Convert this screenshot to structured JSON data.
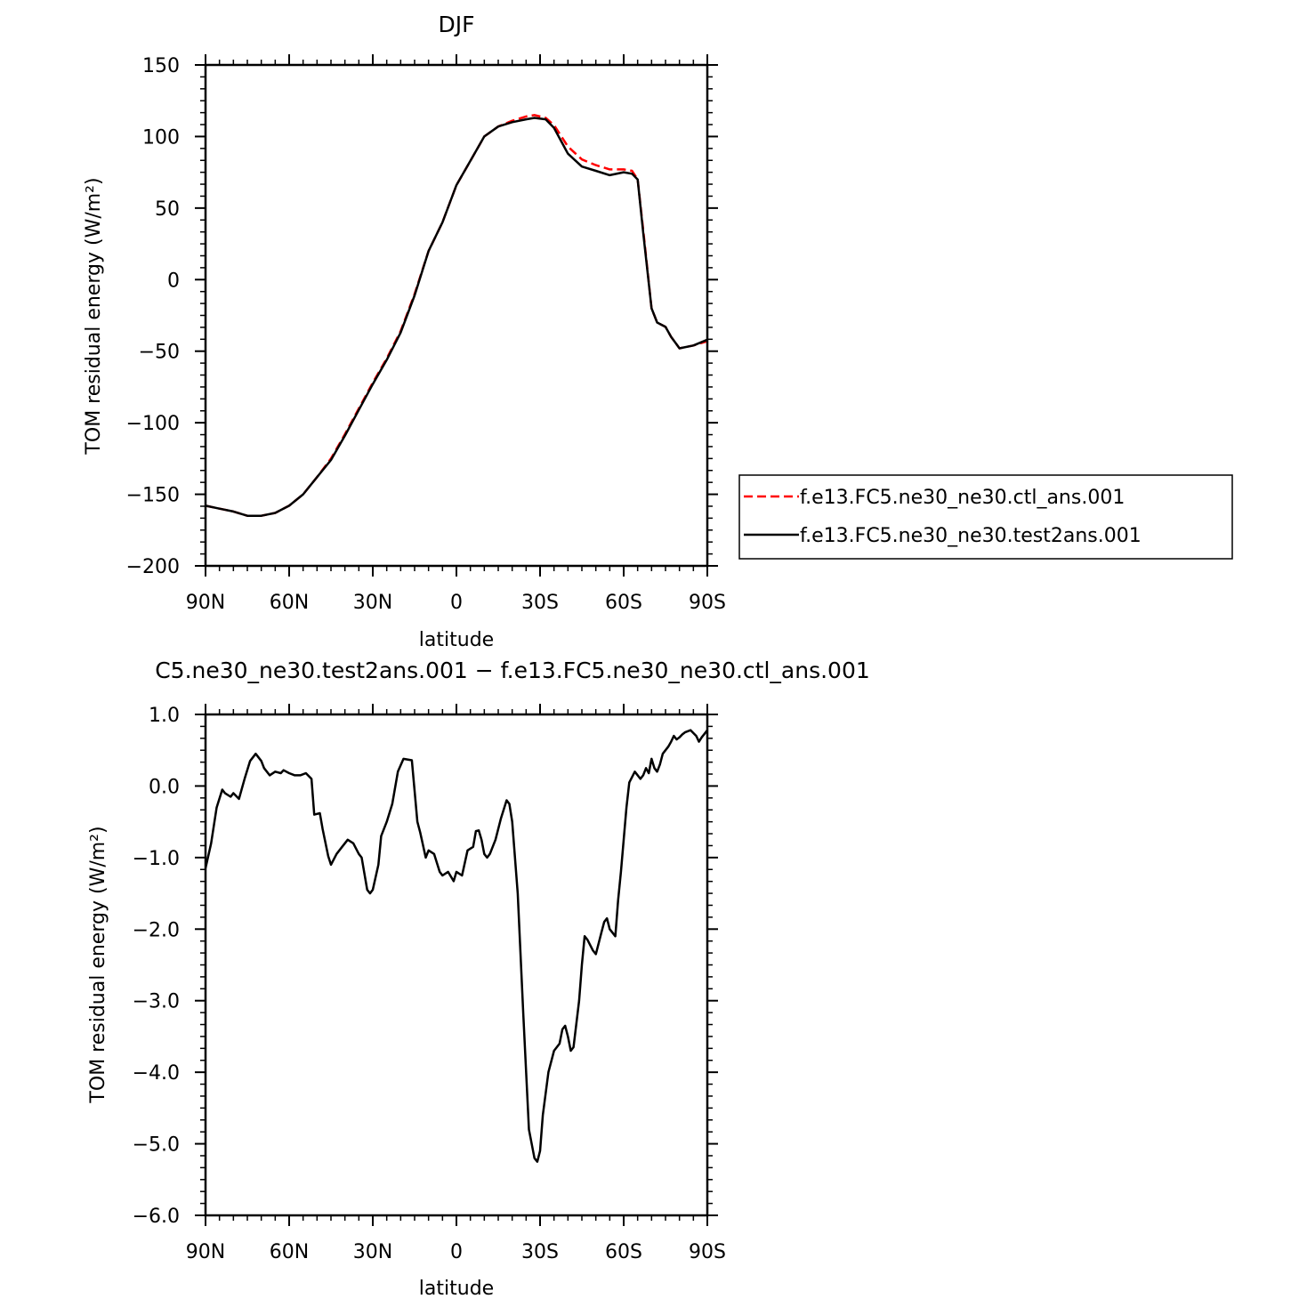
{
  "chart_data": [
    {
      "type": "line",
      "title": "DJF",
      "xlabel": "latitude",
      "ylabel": "TOM residual energy (W/m²)",
      "xlim": [
        90,
        -90
      ],
      "ylim": [
        -200,
        150
      ],
      "x_ticks": [
        {
          "value": 90,
          "label": "90N"
        },
        {
          "value": 60,
          "label": "60N"
        },
        {
          "value": 30,
          "label": "30N"
        },
        {
          "value": 0,
          "label": "0"
        },
        {
          "value": -30,
          "label": "30S"
        },
        {
          "value": -60,
          "label": "60S"
        },
        {
          "value": -90,
          "label": "90S"
        }
      ],
      "y_ticks": [
        {
          "value": 150,
          "label": "150"
        },
        {
          "value": 100,
          "label": "100"
        },
        {
          "value": 50,
          "label": "50"
        },
        {
          "value": 0,
          "label": "0"
        },
        {
          "value": -50,
          "label": "−50"
        },
        {
          "value": -100,
          "label": "−100"
        },
        {
          "value": -150,
          "label": "−150"
        },
        {
          "value": -200,
          "label": "−200"
        }
      ],
      "legend": "right",
      "series": [
        {
          "name": "f.e13.FC5.ne30_ne30.ctl_ans.001",
          "color": "#ff0000",
          "dash": "dashed",
          "x": [
            90,
            85,
            80,
            75,
            70,
            65,
            60,
            55,
            50,
            45,
            40,
            35,
            30,
            25,
            20,
            15,
            10,
            5,
            0,
            -5,
            -10,
            -15,
            -20,
            -25,
            -28,
            -32,
            -35,
            -40,
            -45,
            -50,
            -55,
            -60,
            -63,
            -65,
            -67,
            -70,
            -72,
            -75,
            -77,
            -80,
            -85,
            -90
          ],
          "y": [
            -158,
            -160,
            -162,
            -165,
            -165,
            -163,
            -158,
            -150,
            -138,
            -125,
            -108,
            -90,
            -72,
            -55,
            -36,
            -10,
            20,
            40,
            66,
            83,
            100,
            107,
            111,
            114,
            115,
            113,
            108,
            93,
            84,
            80,
            77,
            77,
            76,
            70,
            35,
            -20,
            -30,
            -33,
            -40,
            -48,
            -46,
            -43
          ]
        },
        {
          "name": "f.e13.FC5.ne30_ne30.test2ans.001",
          "color": "#000000",
          "dash": "solid",
          "x": [
            90,
            85,
            80,
            75,
            70,
            65,
            60,
            55,
            50,
            45,
            40,
            35,
            30,
            25,
            20,
            15,
            10,
            5,
            0,
            -5,
            -10,
            -15,
            -20,
            -25,
            -28,
            -32,
            -35,
            -40,
            -45,
            -50,
            -55,
            -60,
            -63,
            -65,
            -67,
            -70,
            -72,
            -75,
            -77,
            -80,
            -85,
            -90
          ],
          "y": [
            -158,
            -160,
            -162,
            -165,
            -165,
            -163,
            -158,
            -150,
            -138,
            -126,
            -109,
            -91,
            -73,
            -56,
            -37,
            -11,
            20,
            40,
            66,
            83,
            100,
            107,
            110,
            112,
            113,
            112,
            106,
            88,
            79,
            76,
            73,
            75,
            74,
            70,
            33,
            -20,
            -30,
            -33,
            -40,
            -48,
            -46,
            -42
          ]
        }
      ]
    },
    {
      "type": "line",
      "title": "C5.ne30_ne30.test2ans.001 − f.e13.FC5.ne30_ne30.ctl_ans.001",
      "xlabel": "latitude",
      "ylabel": "TOM residual energy (W/m²)",
      "xlim": [
        90,
        -90
      ],
      "ylim": [
        -6.0,
        1.0
      ],
      "x_ticks": [
        {
          "value": 90,
          "label": "90N"
        },
        {
          "value": 60,
          "label": "60N"
        },
        {
          "value": 30,
          "label": "30N"
        },
        {
          "value": 0,
          "label": "0"
        },
        {
          "value": -30,
          "label": "30S"
        },
        {
          "value": -60,
          "label": "60S"
        },
        {
          "value": -90,
          "label": "90S"
        }
      ],
      "y_ticks": [
        {
          "value": 1.0,
          "label": "1.0"
        },
        {
          "value": 0.0,
          "label": "0.0"
        },
        {
          "value": -1.0,
          "label": "−1.0"
        },
        {
          "value": -2.0,
          "label": "−2.0"
        },
        {
          "value": -3.0,
          "label": "−3.0"
        },
        {
          "value": -4.0,
          "label": "−4.0"
        },
        {
          "value": -5.0,
          "label": "−5.0"
        },
        {
          "value": -6.0,
          "label": "−6.0"
        }
      ],
      "series": [
        {
          "color": "#000000",
          "dash": "solid",
          "x": [
            90,
            88,
            86,
            84,
            83,
            81,
            80,
            78,
            76,
            74,
            72,
            70,
            69,
            67,
            65,
            63,
            62,
            60,
            58,
            56,
            54,
            52,
            51,
            49,
            48,
            46,
            45,
            43,
            41,
            39,
            37,
            35,
            34,
            32,
            31,
            30,
            28,
            27,
            25,
            23,
            21,
            19,
            16,
            14,
            13,
            11,
            10,
            8,
            6,
            5,
            3,
            1,
            0,
            -2,
            -4,
            -6,
            -7,
            -8,
            -9,
            -10,
            -11,
            -12,
            -14,
            -16,
            -18,
            -19,
            -20,
            -22,
            -24,
            -26,
            -28,
            -29,
            -30,
            -31,
            -33,
            -35,
            -37,
            -38,
            -39,
            -40,
            -41,
            -42,
            -44,
            -45,
            -46,
            -47,
            -49,
            -50,
            -51,
            -52,
            -53,
            -54,
            -55,
            -57,
            -58,
            -59,
            -61,
            -62,
            -64,
            -66,
            -67,
            -68,
            -69,
            -70,
            -71,
            -72,
            -73,
            -74,
            -75,
            -76,
            -77,
            -78,
            -79,
            -80,
            -81,
            -82,
            -84,
            -86,
            -87,
            -88,
            -89,
            -90
          ],
          "y": [
            -1.15,
            -0.8,
            -0.3,
            -0.05,
            -0.1,
            -0.15,
            -0.1,
            -0.18,
            0.1,
            0.35,
            0.45,
            0.35,
            0.25,
            0.15,
            0.2,
            0.18,
            0.22,
            0.18,
            0.15,
            0.15,
            0.18,
            0.1,
            -0.4,
            -0.38,
            -0.6,
            -0.98,
            -1.1,
            -0.95,
            -0.85,
            -0.75,
            -0.8,
            -0.95,
            -1.0,
            -1.45,
            -1.5,
            -1.45,
            -1.1,
            -0.7,
            -0.5,
            -0.25,
            0.2,
            0.38,
            0.36,
            -0.5,
            -0.65,
            -1.0,
            -0.9,
            -0.95,
            -1.2,
            -1.25,
            -1.2,
            -1.33,
            -1.2,
            -1.25,
            -0.9,
            -0.85,
            -0.63,
            -0.62,
            -0.75,
            -0.95,
            -1.0,
            -0.95,
            -0.75,
            -0.45,
            -0.2,
            -0.25,
            -0.5,
            -1.5,
            -3.2,
            -4.8,
            -5.2,
            -5.25,
            -5.1,
            -4.6,
            -4.0,
            -3.7,
            -3.6,
            -3.4,
            -3.35,
            -3.5,
            -3.7,
            -3.65,
            -3.0,
            -2.5,
            -2.1,
            -2.15,
            -2.3,
            -2.35,
            -2.2,
            -2.05,
            -1.9,
            -1.85,
            -2.0,
            -2.1,
            -1.6,
            -1.2,
            -0.3,
            0.05,
            0.2,
            0.1,
            0.15,
            0.25,
            0.18,
            0.38,
            0.25,
            0.2,
            0.3,
            0.45,
            0.5,
            0.55,
            0.62,
            0.7,
            0.65,
            0.68,
            0.72,
            0.75,
            0.78,
            0.7,
            0.62,
            0.68,
            0.73,
            0.78
          ]
        }
      ]
    }
  ]
}
